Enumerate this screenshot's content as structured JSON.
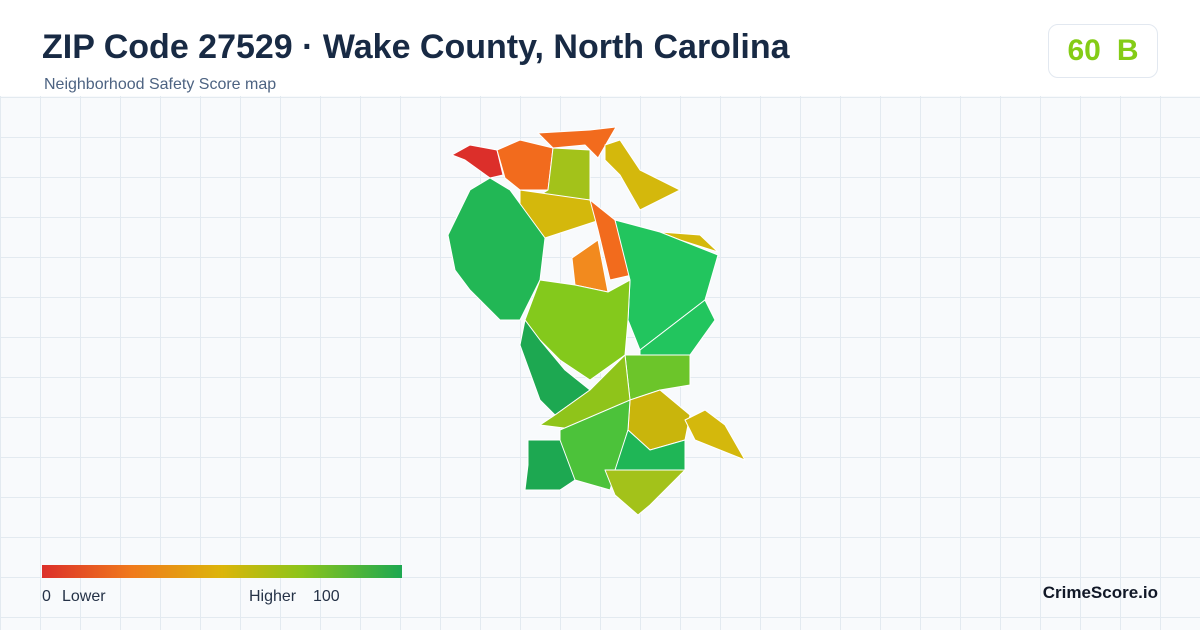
{
  "header": {
    "title": "ZIP Code 27529 · Wake County, North Carolina",
    "subtitle": "Neighborhood Safety Score map"
  },
  "score": {
    "value": 60,
    "grade": "B"
  },
  "legend": {
    "min": 0,
    "min_label": "Lower",
    "max_label": "Higher",
    "max": 100
  },
  "brand": "CrimeScore.io"
}
